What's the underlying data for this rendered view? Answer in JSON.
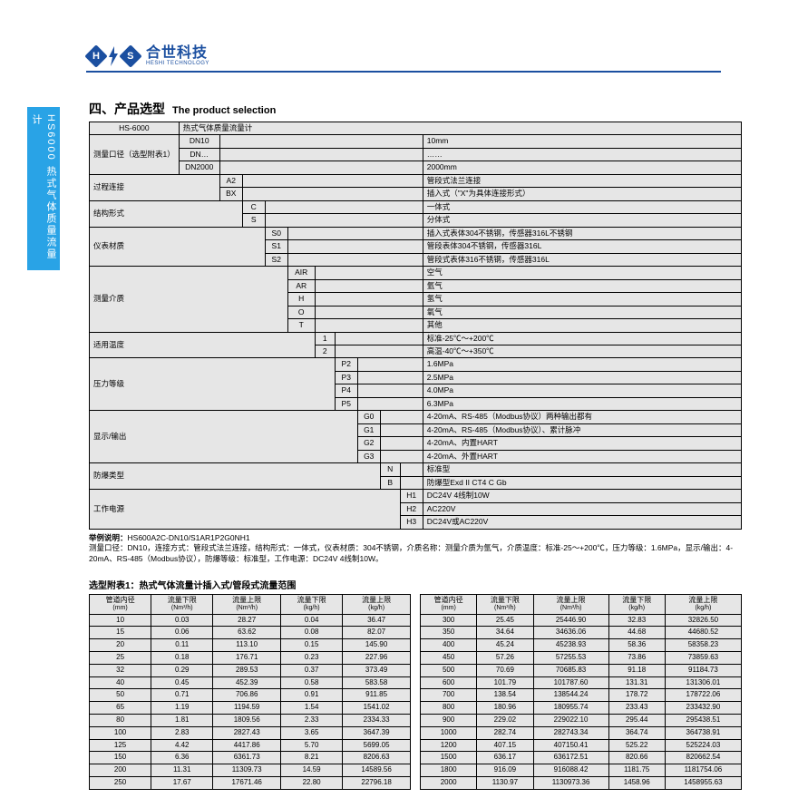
{
  "logo": {
    "cn": "合世科技",
    "en": "HESHI TECHNOLOGY",
    "h": "H",
    "s": "S"
  },
  "side_tab": "HS6000 热式气体质量流量计",
  "section": {
    "cn": "四、产品选型",
    "en": "The product selection"
  },
  "sel": {
    "hs6000": "HS-6000",
    "hs6000_desc": "热式气体质量流量计",
    "dia_label": "测量口径（选型附表1）",
    "dia": [
      [
        "DN10",
        "10mm"
      ],
      [
        "DN…",
        "……"
      ],
      [
        "DN2000",
        "2000mm"
      ]
    ],
    "conn_label": "过程连接",
    "conn": [
      [
        "A2",
        "管段式法兰连接"
      ],
      [
        "BX",
        "插入式（\"X\"为具体连接形式）"
      ]
    ],
    "struct_label": "结构形式",
    "struct": [
      [
        "C",
        "一体式"
      ],
      [
        "S",
        "分体式"
      ]
    ],
    "mat_label": "仪表材质",
    "mat": [
      [
        "S0",
        "插入式表体304不锈钢，传感器316L不锈钢"
      ],
      [
        "S1",
        "管段表体304不锈钢，传感器316L"
      ],
      [
        "S2",
        "管段式表体316不锈钢，传感器316L"
      ]
    ],
    "med_label": "测量介质",
    "med": [
      [
        "AIR",
        "空气"
      ],
      [
        "AR",
        "氩气"
      ],
      [
        "H",
        "氢气"
      ],
      [
        "O",
        "氧气"
      ],
      [
        "T",
        "其他"
      ]
    ],
    "temp_label": "适用温度",
    "temp": [
      [
        "1",
        "标准-25℃～+200℃"
      ],
      [
        "2",
        "高温-40℃～+350℃"
      ]
    ],
    "press_label": "压力等级",
    "press": [
      [
        "P2",
        "1.6MPa"
      ],
      [
        "P3",
        "2.5MPa"
      ],
      [
        "P4",
        "4.0MPa"
      ],
      [
        "P5",
        "6.3MPa"
      ]
    ],
    "out_label": "显示/输出",
    "out": [
      [
        "G0",
        "4-20mA、RS-485（Modbus协议）两种输出都有"
      ],
      [
        "G1",
        "4-20mA、RS-485（Modbus协议）、累计脉冲"
      ],
      [
        "G2",
        "4-20mA、内置HART"
      ],
      [
        "G3",
        "4-20mA、外置HART"
      ]
    ],
    "ex_label": "防爆类型",
    "ex": [
      [
        "N",
        "标准型"
      ],
      [
        "B",
        "防爆型Exd II CT4 C Gb"
      ]
    ],
    "pwr_label": "工作电源",
    "pwr": [
      [
        "H1",
        "DC24V 4线制10W"
      ],
      [
        "H2",
        "AC220V"
      ],
      [
        "H3",
        "DC24V或AC220V"
      ]
    ]
  },
  "example": {
    "lead": "举例说明：",
    "code": "HS600A2C-DN10/S1AR1P2G0NH1",
    "desc": "测量口径：DN10，连接方式：管段式法兰连接，结构形式：一体式，仪表材质：304不锈钢，介质名称：测量介质为氩气，介质温度：标准-25～+200℃，压力等级：1.6MPa，显示/输出：4-20mA、RS-485（Modbus协议），防爆等级：标准型，工作电源：DC24V 4线制10W。"
  },
  "appendix_title": "选型附表1：热式气体流量计插入式/管段式流量范围",
  "range_headers": [
    {
      "t": "管道内径",
      "u": "(mm)"
    },
    {
      "t": "流量下限",
      "u": "(Nm³/h)"
    },
    {
      "t": "流量上限",
      "u": "(Nm³/h)"
    },
    {
      "t": "流量下限",
      "u": "(kg/h)"
    },
    {
      "t": "流量上限",
      "u": "(kg/h)"
    }
  ],
  "range_left": [
    [
      "10",
      "0.03",
      "28.27",
      "0.04",
      "36.47"
    ],
    [
      "15",
      "0.06",
      "63.62",
      "0.08",
      "82.07"
    ],
    [
      "20",
      "0.11",
      "113.10",
      "0.15",
      "145.90"
    ],
    [
      "25",
      "0.18",
      "176.71",
      "0.23",
      "227.96"
    ],
    [
      "32",
      "0.29",
      "289.53",
      "0.37",
      "373.49"
    ],
    [
      "40",
      "0.45",
      "452.39",
      "0.58",
      "583.58"
    ],
    [
      "50",
      "0.71",
      "706.86",
      "0.91",
      "911.85"
    ],
    [
      "65",
      "1.19",
      "1194.59",
      "1.54",
      "1541.02"
    ],
    [
      "80",
      "1.81",
      "1809.56",
      "2.33",
      "2334.33"
    ],
    [
      "100",
      "2.83",
      "2827.43",
      "3.65",
      "3647.39"
    ],
    [
      "125",
      "4.42",
      "4417.86",
      "5.70",
      "5699.05"
    ],
    [
      "150",
      "6.36",
      "6361.73",
      "8.21",
      "8206.63"
    ],
    [
      "200",
      "11.31",
      "11309.73",
      "14.59",
      "14589.56"
    ],
    [
      "250",
      "17.67",
      "17671.46",
      "22.80",
      "22796.18"
    ]
  ],
  "range_right": [
    [
      "300",
      "25.45",
      "25446.90",
      "32.83",
      "32826.50"
    ],
    [
      "350",
      "34.64",
      "34636.06",
      "44.68",
      "44680.52"
    ],
    [
      "400",
      "45.24",
      "45238.93",
      "58.36",
      "58358.23"
    ],
    [
      "450",
      "57.26",
      "57255.53",
      "73.86",
      "73859.63"
    ],
    [
      "500",
      "70.69",
      "70685.83",
      "91.18",
      "91184.73"
    ],
    [
      "600",
      "101.79",
      "101787.60",
      "131.31",
      "131306.01"
    ],
    [
      "700",
      "138.54",
      "138544.24",
      "178.72",
      "178722.06"
    ],
    [
      "800",
      "180.96",
      "180955.74",
      "233.43",
      "233432.90"
    ],
    [
      "900",
      "229.02",
      "229022.10",
      "295.44",
      "295438.51"
    ],
    [
      "1000",
      "282.74",
      "282743.34",
      "364.74",
      "364738.91"
    ],
    [
      "1200",
      "407.15",
      "407150.41",
      "525.22",
      "525224.03"
    ],
    [
      "1500",
      "636.17",
      "636172.51",
      "820.66",
      "820662.54"
    ],
    [
      "1800",
      "916.09",
      "916088.42",
      "1181.75",
      "1181754.06"
    ],
    [
      "2000",
      "1130.97",
      "1130973.36",
      "1458.96",
      "1458955.63"
    ]
  ]
}
